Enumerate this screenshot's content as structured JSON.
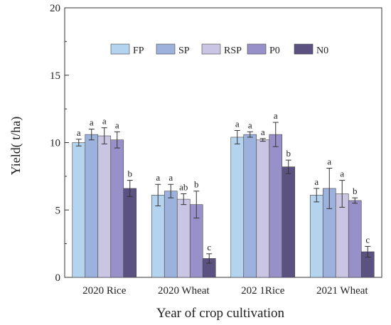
{
  "chart_data": {
    "type": "bar",
    "title": "",
    "xlabel": "Year of crop cultivation",
    "ylabel": "Yield(   t/ha)",
    "ylim": [
      0,
      20
    ],
    "yticks": [
      0,
      5,
      10,
      15,
      20
    ],
    "yticks_label": [
      "0",
      "5",
      "10",
      "15",
      "20"
    ],
    "categories": [
      "2020 Rice",
      "2020 Wheat",
      "202 1Rice",
      "2021 Wheat"
    ],
    "legend_position": "top-right",
    "grid": false,
    "series": [
      {
        "name": "FP",
        "color": "#b4d3ee",
        "values": [
          10.0,
          6.1,
          10.4,
          6.1
        ],
        "errors": [
          0.25,
          0.8,
          0.5,
          0.5
        ],
        "labels": [
          "a",
          "a",
          "a",
          "a"
        ]
      },
      {
        "name": "SP",
        "color": "#9cb2dc",
        "values": [
          10.6,
          6.4,
          10.6,
          6.6
        ],
        "errors": [
          0.4,
          0.5,
          0.2,
          1.5
        ],
        "labels": [
          "a",
          "a",
          "a",
          "a"
        ]
      },
      {
        "name": "RSP",
        "color": "#c9c5e3",
        "values": [
          10.5,
          5.8,
          10.2,
          6.2
        ],
        "errors": [
          0.6,
          0.4,
          0.1,
          1.0
        ],
        "labels": [
          "a",
          "ab",
          "a",
          "a"
        ]
      },
      {
        "name": "P0",
        "color": "#9891c9",
        "values": [
          10.2,
          5.4,
          10.6,
          5.7
        ],
        "errors": [
          0.6,
          1.0,
          0.9,
          0.2
        ],
        "labels": [
          "a",
          "b",
          "a",
          "b"
        ]
      },
      {
        "name": "N0",
        "color": "#5b5282",
        "values": [
          6.6,
          1.4,
          8.2,
          1.9
        ],
        "errors": [
          0.6,
          0.35,
          0.5,
          0.4
        ],
        "labels": [
          "b",
          "c",
          "b",
          "c"
        ]
      }
    ]
  }
}
